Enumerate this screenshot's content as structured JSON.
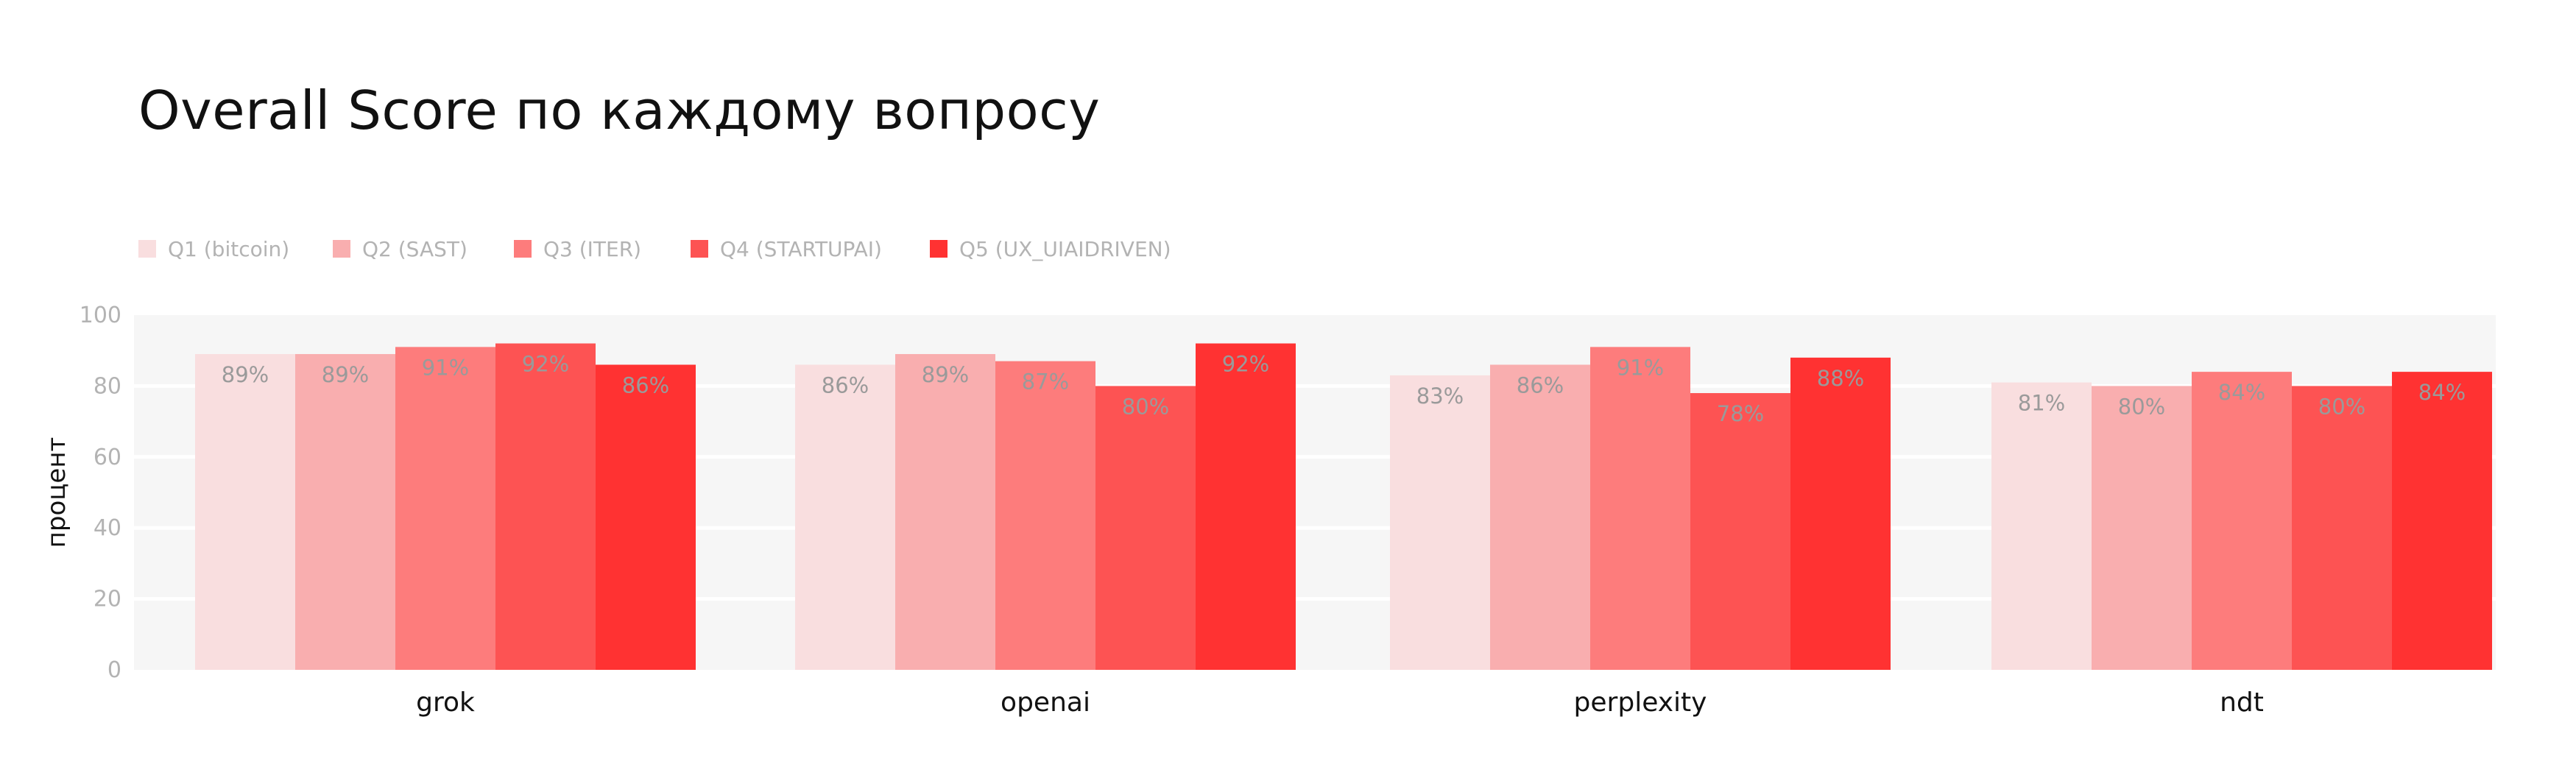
{
  "chart_data": {
    "type": "bar",
    "title": "Overall Score по каждому вопросу",
    "xlabel": "",
    "ylabel": "процент",
    "categories": [
      "grok",
      "openai",
      "perplexity",
      "ndt"
    ],
    "series": [
      {
        "name": "Q1 (bitcoin)",
        "color": "#f9dedf",
        "values": [
          89,
          86,
          83,
          81
        ],
        "labels": [
          "89%",
          "86%",
          "83%",
          "81%"
        ]
      },
      {
        "name": "Q2 (SAST)",
        "color": "#f9aeaf",
        "values": [
          89,
          89,
          86,
          80
        ],
        "labels": [
          "89%",
          "89%",
          "86%",
          "80%"
        ]
      },
      {
        "name": "Q3 (ITER)",
        "color": "#fd7c7c",
        "values": [
          91,
          87,
          91,
          84
        ],
        "labels": [
          "91%",
          "87%",
          "91%",
          "84%"
        ]
      },
      {
        "name": "Q4 (STARTUPAI)",
        "color": "#fd5353",
        "values": [
          92,
          80,
          78,
          80
        ],
        "labels": [
          "92%",
          "80%",
          "78%",
          "80%"
        ]
      },
      {
        "name": "Q5 (UX_UIAIDRIVEN)",
        "color": "#ff3232",
        "values": [
          86,
          92,
          88,
          84
        ],
        "labels": [
          "86%",
          "92%",
          "88%",
          "84%"
        ]
      }
    ],
    "ylim": [
      0,
      100
    ],
    "yticks": [
      0,
      20,
      40,
      60,
      80,
      100
    ],
    "grid": true,
    "legend": "top-left",
    "plot_background": "#f6f6f6"
  }
}
